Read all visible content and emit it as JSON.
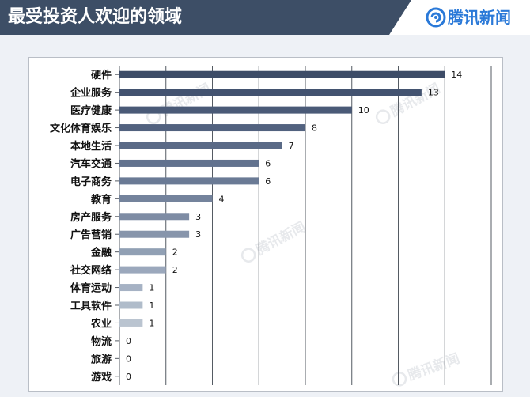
{
  "header": {
    "title": "最受投资人欢迎的领域",
    "brand_name": "腾讯新闻",
    "background_color": "#3d4e66",
    "brand_color": "#2a79d8"
  },
  "watermark": {
    "text": "腾讯新闻",
    "icon": "tencent-news-logo-icon"
  },
  "chart_data": {
    "type": "bar",
    "orientation": "horizontal",
    "title": "",
    "xlabel": "",
    "ylabel": "",
    "categories": [
      "硬件",
      "企业服务",
      "医疗健康",
      "文化体育娱乐",
      "本地生活",
      "汽车交通",
      "电子商务",
      "教育",
      "房产服务",
      "广告营销",
      "金融",
      "社交网络",
      "体育运动",
      "工具软件",
      "农业",
      "物流",
      "旅游",
      "游戏"
    ],
    "values": [
      14,
      13,
      10,
      8,
      7,
      6,
      6,
      4,
      3,
      3,
      2,
      2,
      1,
      1,
      1,
      0,
      0,
      0
    ],
    "xlim": [
      0,
      16
    ],
    "grid_step": 2,
    "grid": true,
    "legend": "none",
    "bar_colors": [
      "#3d4c67",
      "#435370",
      "#4a5a77",
      "#52627f",
      "#5a6a86",
      "#62728e",
      "#6a7a95",
      "#74839c",
      "#7e8ca4",
      "#8795ab",
      "#91a0b4",
      "#9ba8bc",
      "#a6b2c4",
      "#b0bcca",
      "#bac4d0"
    ]
  }
}
